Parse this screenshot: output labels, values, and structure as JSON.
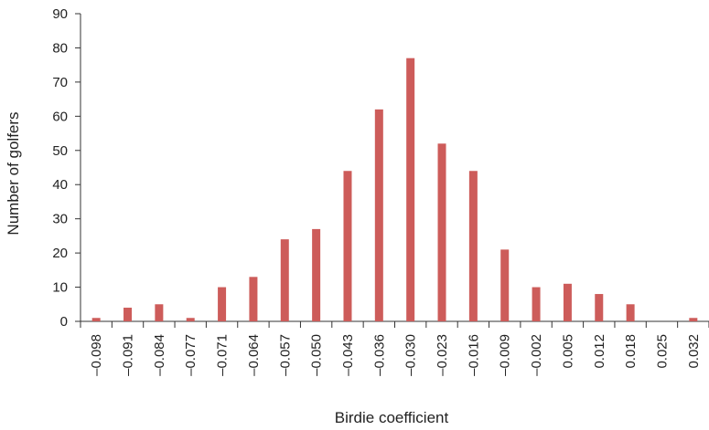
{
  "chart_data": {
    "type": "bar",
    "xlabel": "Birdie coefficient",
    "ylabel": "Number of golfers",
    "ylim": [
      0,
      90
    ],
    "yticks": [
      0,
      10,
      20,
      30,
      40,
      50,
      60,
      70,
      80,
      90
    ],
    "grid": false,
    "categories": [
      "–0.098",
      "–0.091",
      "–0.084",
      "–0.077",
      "–0.071",
      "–0.064",
      "–0.057",
      "–0.050",
      "–0.043",
      "–0.036",
      "–0.030",
      "–0.023",
      "–0.016",
      "–0.009",
      "–0.002",
      "0.005",
      "0.012",
      "0.018",
      "0.025",
      "0.032"
    ],
    "values": [
      1,
      4,
      5,
      1,
      10,
      13,
      24,
      27,
      44,
      62,
      77,
      52,
      44,
      21,
      10,
      11,
      8,
      5,
      0,
      1
    ],
    "bar_color": "#cd5c5a",
    "axis_color": "#333333"
  }
}
